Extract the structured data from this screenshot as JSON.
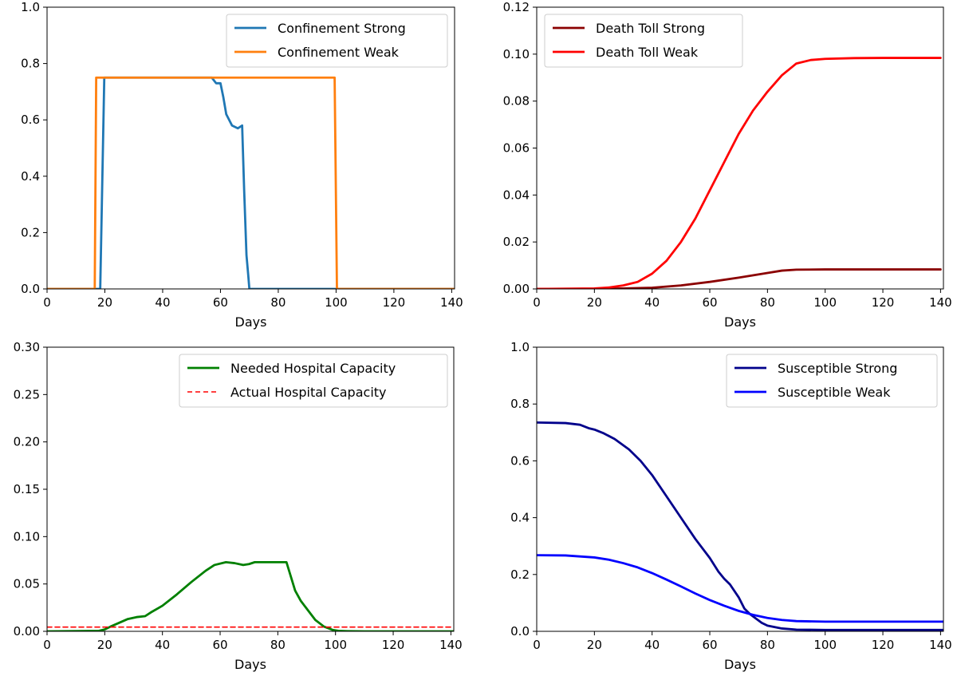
{
  "chart_data": [
    {
      "type": "line",
      "xlabel": "Days",
      "ylabel": "",
      "xlim": [
        0,
        141
      ],
      "ylim": [
        0,
        1.0
      ],
      "xticks": [
        0,
        20,
        40,
        60,
        80,
        100,
        120,
        140
      ],
      "yticks": [
        0,
        0.2,
        0.4,
        0.6,
        0.8,
        1.0
      ],
      "ytick_labels": [
        "0.0",
        "0.2",
        "0.4",
        "0.6",
        "0.8",
        "1.0"
      ],
      "legend_position": "top-right",
      "series": [
        {
          "name": "Confinement Strong",
          "color": "#1f77b4",
          "style": "solid",
          "x": [
            0,
            18.4,
            19.8,
            20,
            57,
            58.5,
            60,
            61,
            62,
            64,
            66,
            67.5,
            68.2,
            69,
            69.6,
            70,
            141
          ],
          "y": [
            0,
            0,
            0.75,
            0.75,
            0.75,
            0.73,
            0.73,
            0.68,
            0.62,
            0.58,
            0.57,
            0.58,
            0.35,
            0.12,
            0.05,
            0,
            0
          ]
        },
        {
          "name": "Confinement Weak",
          "color": "#ff7f0e",
          "style": "solid",
          "x": [
            0,
            16.5,
            17,
            99.5,
            100.3,
            141
          ],
          "y": [
            0,
            0,
            0.75,
            0.75,
            0,
            0
          ]
        }
      ]
    },
    {
      "type": "line",
      "xlabel": "Days",
      "ylabel": "",
      "xlim": [
        0,
        141
      ],
      "ylim": [
        0,
        0.12
      ],
      "xticks": [
        0,
        20,
        40,
        60,
        80,
        100,
        120,
        140
      ],
      "yticks": [
        0,
        0.02,
        0.04,
        0.06,
        0.08,
        0.1,
        0.12
      ],
      "ytick_labels": [
        "0.00",
        "0.02",
        "0.04",
        "0.06",
        "0.08",
        "0.10",
        "0.12"
      ],
      "legend_position": "top-left",
      "series": [
        {
          "name": "Death Toll Strong",
          "color": "#8b0000",
          "style": "solid",
          "x": [
            0,
            20,
            30,
            40,
            50,
            60,
            70,
            80,
            85,
            90,
            100,
            120,
            140
          ],
          "y": [
            0,
            0,
            0.0002,
            0.0005,
            0.0015,
            0.003,
            0.0048,
            0.0068,
            0.0078,
            0.0082,
            0.0083,
            0.0083,
            0.0083
          ]
        },
        {
          "name": "Death Toll Weak",
          "color": "#ff0000",
          "style": "solid",
          "x": [
            0,
            20,
            25,
            30,
            35,
            40,
            45,
            50,
            55,
            60,
            65,
            70,
            75,
            80,
            85,
            90,
            95,
            100,
            110,
            120,
            140
          ],
          "y": [
            0,
            0.0002,
            0.0006,
            0.0015,
            0.003,
            0.0065,
            0.012,
            0.02,
            0.03,
            0.042,
            0.054,
            0.066,
            0.076,
            0.084,
            0.091,
            0.096,
            0.0975,
            0.098,
            0.0983,
            0.0984,
            0.0984
          ]
        }
      ]
    },
    {
      "type": "line",
      "xlabel": "Days",
      "ylabel": "",
      "xlim": [
        0,
        141
      ],
      "ylim": [
        0,
        0.3
      ],
      "xticks": [
        0,
        20,
        40,
        60,
        80,
        100,
        120,
        140
      ],
      "yticks": [
        0,
        0.05,
        0.1,
        0.15,
        0.2,
        0.25,
        0.3
      ],
      "ytick_labels": [
        "0.00",
        "0.05",
        "0.10",
        "0.15",
        "0.20",
        "0.25",
        "0.30"
      ],
      "legend_position": "top-right",
      "series": [
        {
          "name": "Needed Hospital Capacity",
          "color": "#008000",
          "style": "solid",
          "x": [
            0,
            18,
            20,
            22,
            25,
            28,
            31,
            34,
            36,
            40,
            45,
            50,
            55,
            58,
            62,
            65,
            68,
            70,
            72,
            75,
            83,
            84,
            86,
            88,
            90,
            93,
            96,
            99,
            101,
            104,
            110,
            141
          ],
          "y": [
            0,
            0.0005,
            0.002,
            0.005,
            0.009,
            0.013,
            0.015,
            0.016,
            0.02,
            0.027,
            0.039,
            0.052,
            0.064,
            0.07,
            0.073,
            0.072,
            0.07,
            0.071,
            0.073,
            0.073,
            0.073,
            0.063,
            0.043,
            0.032,
            0.024,
            0.012,
            0.005,
            0.0015,
            0.0005,
            0.0002,
            0,
            0
          ]
        },
        {
          "name": "Actual Hospital Capacity",
          "color": "#ff0000",
          "style": "dashed",
          "x": [
            0,
            141
          ],
          "y": [
            0.0045,
            0.0045
          ]
        }
      ]
    },
    {
      "type": "line",
      "xlabel": "Days",
      "ylabel": "",
      "xlim": [
        0,
        141
      ],
      "ylim": [
        0,
        1.0
      ],
      "xticks": [
        0,
        20,
        40,
        60,
        80,
        100,
        120,
        140
      ],
      "yticks": [
        0,
        0.2,
        0.4,
        0.6,
        0.8,
        1.0
      ],
      "ytick_labels": [
        "0.0",
        "0.2",
        "0.4",
        "0.6",
        "0.8",
        "1.0"
      ],
      "legend_position": "top-right",
      "series": [
        {
          "name": "Susceptible Strong",
          "color": "#00008b",
          "style": "solid",
          "x": [
            0,
            10,
            15,
            18,
            20,
            23,
            27,
            32,
            36,
            40,
            45,
            50,
            55,
            60,
            63,
            65,
            67,
            70,
            72,
            74,
            76,
            78,
            80,
            85,
            90,
            100,
            141
          ],
          "y": [
            0.735,
            0.733,
            0.727,
            0.715,
            0.71,
            0.698,
            0.677,
            0.64,
            0.6,
            0.55,
            0.475,
            0.4,
            0.325,
            0.258,
            0.21,
            0.185,
            0.165,
            0.12,
            0.08,
            0.06,
            0.045,
            0.03,
            0.02,
            0.01,
            0.006,
            0.005,
            0.005
          ]
        },
        {
          "name": "Susceptible Weak",
          "color": "#0000ff",
          "style": "solid",
          "x": [
            0,
            10,
            20,
            25,
            30,
            35,
            40,
            45,
            50,
            55,
            60,
            65,
            70,
            75,
            80,
            85,
            90,
            100,
            120,
            141
          ],
          "y": [
            0.268,
            0.267,
            0.26,
            0.252,
            0.24,
            0.225,
            0.205,
            0.182,
            0.158,
            0.133,
            0.11,
            0.09,
            0.072,
            0.058,
            0.047,
            0.04,
            0.036,
            0.034,
            0.034,
            0.034
          ]
        }
      ]
    }
  ]
}
